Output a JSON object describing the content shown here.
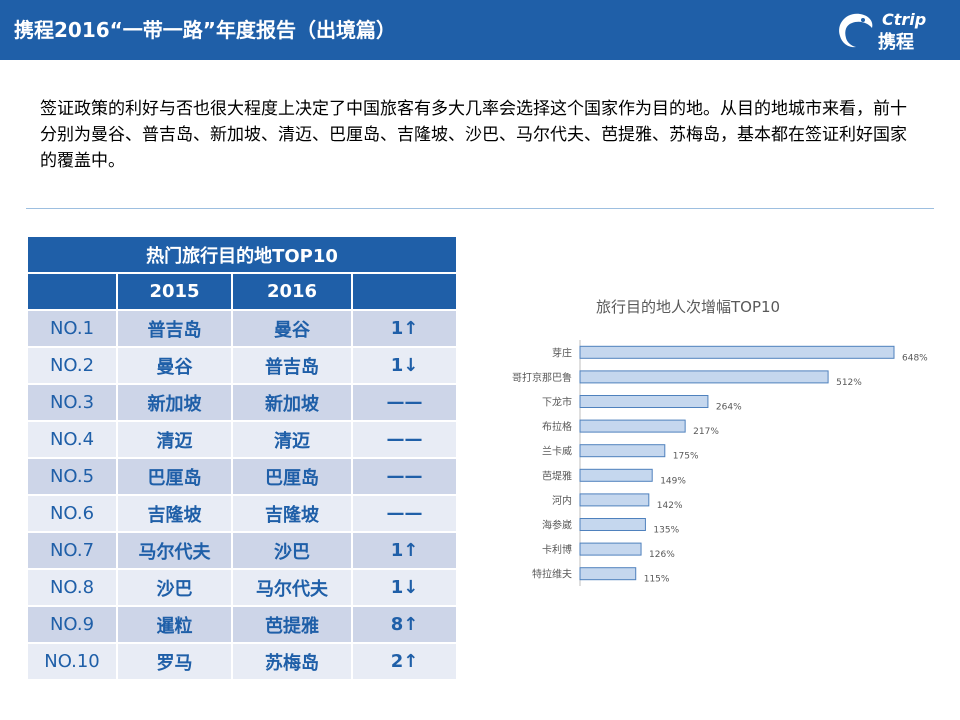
{
  "header": {
    "title": "携程2016“一带一路”年度报告（出境篇）",
    "logo_latin": "Ctrip",
    "logo_cn": "携程"
  },
  "intro": "签证政策的利好与否也很大程度上决定了中国旅客有多大几率会选择这个国家作为目的地。从目的地城市来看，前十分别为曼谷、普吉岛、新加坡、清迈、巴厘岛、吉隆坡、沙巴、马尔代夫、芭提雅、苏梅岛，基本都在签证利好国家的覆盖中。",
  "table": {
    "title": "热门旅行目的地TOP10",
    "headers": [
      "",
      "2015",
      "2016",
      ""
    ],
    "rows": [
      {
        "rank": "NO.1",
        "y2015": "普吉岛",
        "y2016": "曼谷",
        "change": "1↑"
      },
      {
        "rank": "NO.2",
        "y2015": "曼谷",
        "y2016": "普吉岛",
        "change": "1↓"
      },
      {
        "rank": "NO.3",
        "y2015": "新加坡",
        "y2016": "新加坡",
        "change": "——"
      },
      {
        "rank": "NO.4",
        "y2015": "清迈",
        "y2016": "清迈",
        "change": "——"
      },
      {
        "rank": "NO.5",
        "y2015": "巴厘岛",
        "y2016": "巴厘岛",
        "change": "——"
      },
      {
        "rank": "NO.6",
        "y2015": "吉隆坡",
        "y2016": "吉隆坡",
        "change": "——"
      },
      {
        "rank": "NO.7",
        "y2015": "马尔代夫",
        "y2016": "沙巴",
        "change": "1↑"
      },
      {
        "rank": "NO.8",
        "y2015": "沙巴",
        "y2016": "马尔代夫",
        "change": "1↓"
      },
      {
        "rank": "NO.9",
        "y2015": "暹粒",
        "y2016": "芭提雅",
        "change": "8↑"
      },
      {
        "rank": "NO.10",
        "y2015": "罗马",
        "y2016": "苏梅岛",
        "change": "2↑"
      }
    ]
  },
  "colors": {
    "brand": "#1F5FA8",
    "row_odd": "#CDD5E8",
    "row_even": "#E8ECF5",
    "bar_fill": "#C5D7EE",
    "bar_stroke": "#4F81BD"
  },
  "chart_data": {
    "type": "bar",
    "orientation": "horizontal",
    "title": "旅行目的地人次增幅TOP10",
    "categories": [
      "芽庄",
      "哥打京那巴鲁",
      "下龙市",
      "布拉格",
      "兰卡威",
      "芭堤雅",
      "河内",
      "海参崴",
      "卡利博",
      "特拉维夫"
    ],
    "values": [
      648,
      512,
      264,
      217,
      175,
      149,
      142,
      135,
      126,
      115
    ],
    "data_labels": [
      "648%",
      "512%",
      "264%",
      "217%",
      "175%",
      "149%",
      "142%",
      "135%",
      "126%",
      "115%"
    ],
    "xlim": [
      0,
      648
    ],
    "grid": false,
    "legend": "none"
  }
}
